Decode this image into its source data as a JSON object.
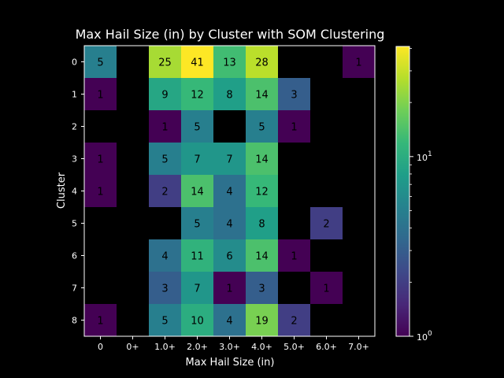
{
  "chart_data": {
    "type": "heatmap",
    "title": "Max Hail Size (in) by Cluster with SOM Clustering",
    "xlabel": "Max Hail Size (in)",
    "ylabel": "Cluster",
    "x_categories": [
      "0",
      "0+",
      "1.0+",
      "2.0+",
      "3.0+",
      "4.0+",
      "5.0+",
      "6.0+",
      "7.0+"
    ],
    "y_categories": [
      "0",
      "1",
      "2",
      "3",
      "4",
      "5",
      "6",
      "7",
      "8"
    ],
    "values": [
      [
        5,
        null,
        25,
        41,
        13,
        28,
        null,
        null,
        1
      ],
      [
        1,
        null,
        9,
        12,
        8,
        14,
        3,
        null,
        null
      ],
      [
        null,
        null,
        1,
        5,
        null,
        5,
        1,
        null,
        null
      ],
      [
        1,
        null,
        5,
        7,
        7,
        14,
        null,
        null,
        null
      ],
      [
        1,
        null,
        2,
        14,
        4,
        12,
        null,
        null,
        null
      ],
      [
        null,
        null,
        null,
        5,
        4,
        8,
        null,
        2,
        null
      ],
      [
        null,
        null,
        4,
        11,
        6,
        14,
        1,
        null,
        null
      ],
      [
        null,
        null,
        3,
        7,
        1,
        3,
        null,
        1,
        null
      ],
      [
        1,
        null,
        5,
        10,
        4,
        19,
        2,
        null,
        null
      ]
    ],
    "colorscale": "viridis",
    "color_scale_type": "log",
    "color_range": [
      1,
      41
    ],
    "colorbar_ticks": [
      {
        "value": 1,
        "label": "10^0"
      },
      {
        "value": 10,
        "label": "10^1"
      }
    ],
    "missing_color": "#000000"
  }
}
